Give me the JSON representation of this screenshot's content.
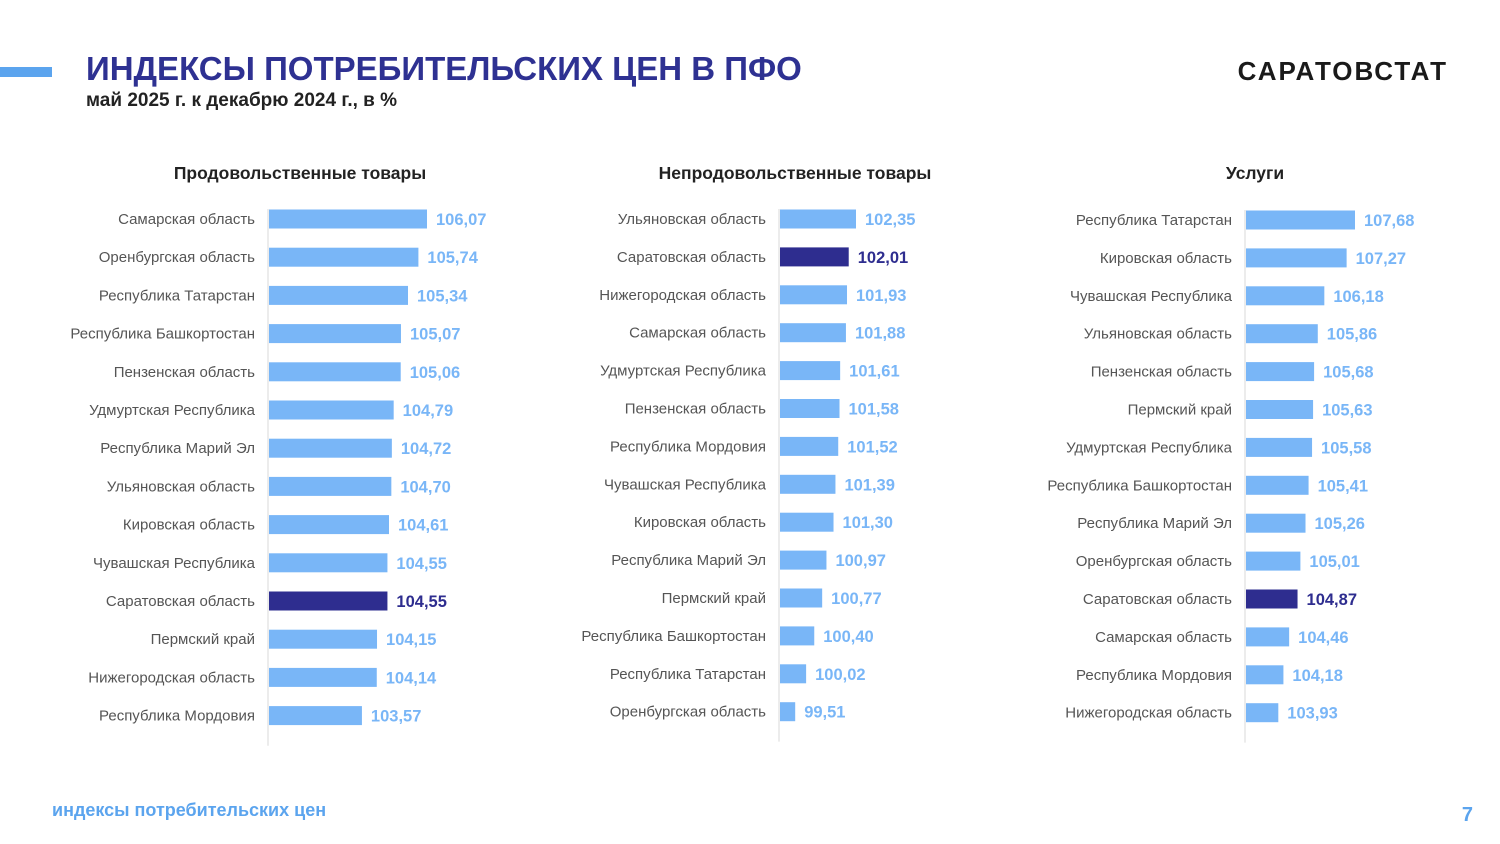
{
  "header": {
    "title": "ИНДЕКСЫ ПОТРЕБИТЕЛЬСКИХ ЦЕН В ПФО",
    "subtitle": "май 2025 г. к декабрю 2024 г., в %",
    "brand": "САРАТОВСТАТ"
  },
  "footer": {
    "text": "индексы потребительских цен",
    "page_number": "7"
  },
  "colors": {
    "title": "#2e3192",
    "accent": "#5ba4ee",
    "bar_default": "#79b6f7",
    "bar_highlight": "#2e2d8f",
    "value_default": "#79b6f7",
    "value_highlight": "#2e2d8f",
    "label": "#555555"
  },
  "chart_data": [
    {
      "type": "bar",
      "orientation": "horizontal",
      "title": "Продовольственные товары",
      "highlight": "Саратовская область",
      "categories": [
        "Самарская область",
        "Оренбургская область",
        "Республика Татарстан",
        "Республика Башкортостан",
        "Пензенская область",
        "Удмуртская Республика",
        "Республика Марий Эл",
        "Ульяновская область",
        "Кировская область",
        "Чувашская Республика",
        "Саратовская область",
        "Пермский край",
        "Нижегородская область",
        "Республика Мордовия"
      ],
      "values": [
        106.07,
        105.74,
        105.34,
        105.07,
        105.06,
        104.79,
        104.72,
        104.7,
        104.61,
        104.55,
        104.55,
        104.15,
        104.14,
        103.57
      ],
      "value_labels": [
        "106,07",
        "105,74",
        "105,34",
        "105,07",
        "105,06",
        "104,79",
        "104,72",
        "104,70",
        "104,61",
        "104,55",
        "104,55",
        "104,15",
        "104,14",
        "103,57"
      ],
      "xlim": [
        100,
        106.07
      ]
    },
    {
      "type": "bar",
      "orientation": "horizontal",
      "title": "Непродовольственные товары",
      "highlight": "Саратовская область",
      "categories": [
        "Ульяновская область",
        "Саратовская область",
        "Нижегородская область",
        "Самарская область",
        "Удмуртская Республика",
        "Пензенская область",
        "Республика Мордовия",
        "Чувашская Республика",
        "Кировская область",
        "Республика Марий Эл",
        "Пермский край",
        "Республика Башкортостан",
        "Республика Татарстан",
        "Оренбургская область"
      ],
      "values": [
        102.35,
        102.01,
        101.93,
        101.88,
        101.61,
        101.58,
        101.52,
        101.39,
        101.3,
        100.97,
        100.77,
        100.4,
        100.02,
        99.51
      ],
      "value_labels": [
        "102,35",
        "102,01",
        "101,93",
        "101,88",
        "101,61",
        "101,58",
        "101,52",
        "101,39",
        "101,30",
        "100,97",
        "100,77",
        "100,40",
        "100,02",
        "99,51"
      ],
      "xlim": [
        98.8,
        102.35
      ]
    },
    {
      "type": "bar",
      "orientation": "horizontal",
      "title": "Услуги",
      "highlight": "Саратовская область",
      "categories": [
        "Республика Татарстан",
        "Кировская область",
        "Чувашская Республика",
        "Ульяновская область",
        "Пензенская область",
        "Пермский край",
        "Удмуртская Республика",
        "Республика Башкортостан",
        "Республика Марий Эл",
        "Оренбургская область",
        "Саратовская область",
        "Самарская область",
        "Республика Мордовия",
        "Нижегородская область"
      ],
      "values": [
        107.68,
        107.27,
        106.18,
        105.86,
        105.68,
        105.63,
        105.58,
        105.41,
        105.26,
        105.01,
        104.87,
        104.46,
        104.18,
        103.93
      ],
      "value_labels": [
        "107,68",
        "107,27",
        "106,18",
        "105,86",
        "105,68",
        "105,63",
        "105,58",
        "105,41",
        "105,26",
        "105,01",
        "104,87",
        "104,46",
        "104,18",
        "103,93"
      ],
      "xlim": [
        102.35,
        107.68
      ]
    }
  ]
}
